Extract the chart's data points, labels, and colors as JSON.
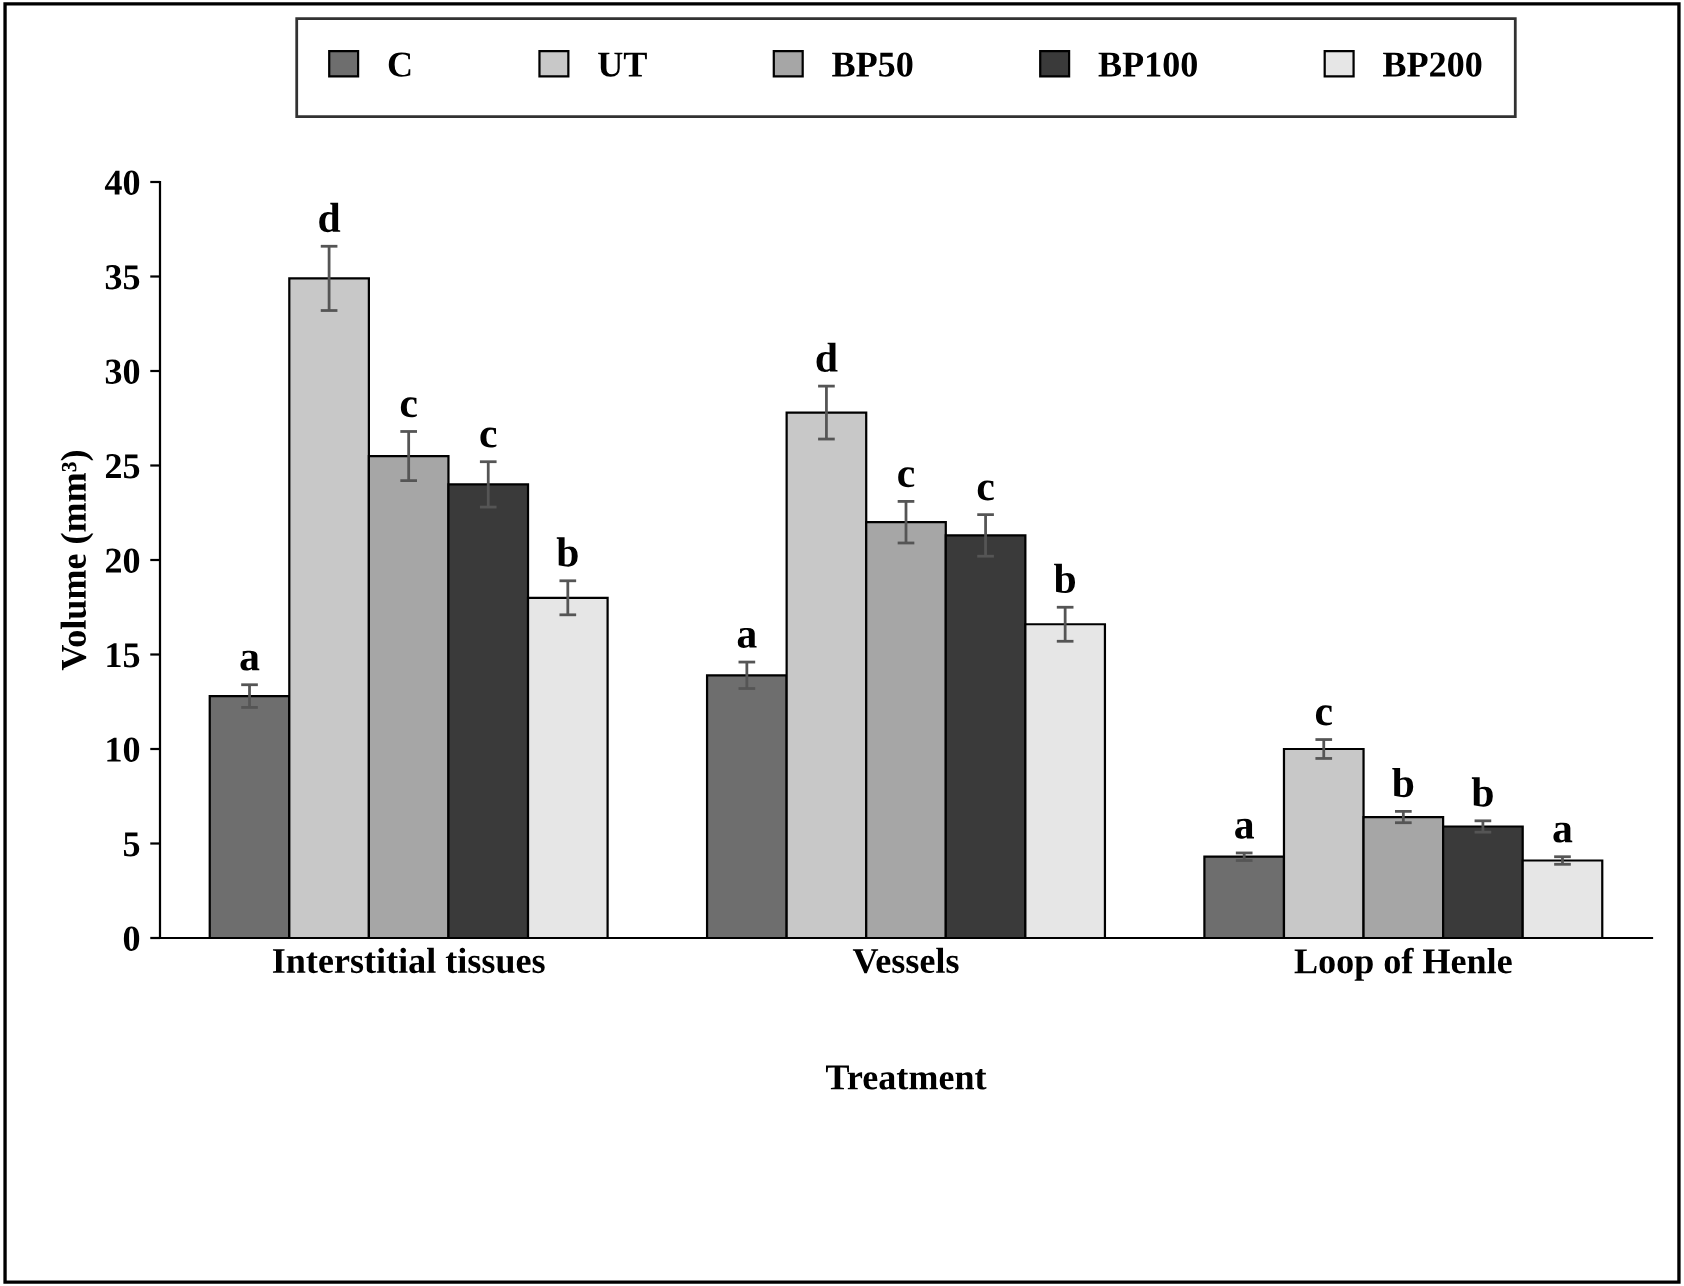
{
  "chart_data": {
    "type": "bar",
    "xlabel": "Treatment",
    "ylabel": "Volume (mm³)",
    "categories": [
      "Interstitial tissues",
      "Vessels",
      "Loop of Henle"
    ],
    "series": [
      {
        "name": "C",
        "color": "#6e6e6e",
        "values": [
          12.8,
          13.9,
          4.3
        ],
        "errors": [
          0.6,
          0.7,
          0.2
        ],
        "value_labels": [
          "a",
          "a",
          "a"
        ]
      },
      {
        "name": "UT",
        "color": "#c8c8c8",
        "values": [
          34.9,
          27.8,
          10.0
        ],
        "errors": [
          1.7,
          1.4,
          0.5
        ],
        "value_labels": [
          "d",
          "d",
          "c"
        ]
      },
      {
        "name": "BP50",
        "color": "#a6a6a6",
        "values": [
          25.5,
          22.0,
          6.4
        ],
        "errors": [
          1.3,
          1.1,
          0.3
        ],
        "value_labels": [
          "c",
          "c",
          "b"
        ]
      },
      {
        "name": "BP100",
        "color": "#3a3a3a",
        "values": [
          24.0,
          21.3,
          5.9
        ],
        "errors": [
          1.2,
          1.1,
          0.3
        ],
        "value_labels": [
          "c",
          "c",
          "b"
        ]
      },
      {
        "name": "BP200",
        "color": "#e6e6e6",
        "values": [
          18.0,
          16.6,
          4.1
        ],
        "errors": [
          0.9,
          0.9,
          0.2
        ],
        "value_labels": [
          "b",
          "b",
          "a"
        ]
      }
    ],
    "ylim": [
      0,
      40
    ],
    "yticks": [
      0,
      5,
      10,
      15,
      20,
      25,
      30,
      35,
      40
    ],
    "grid": false,
    "legend": "top"
  }
}
